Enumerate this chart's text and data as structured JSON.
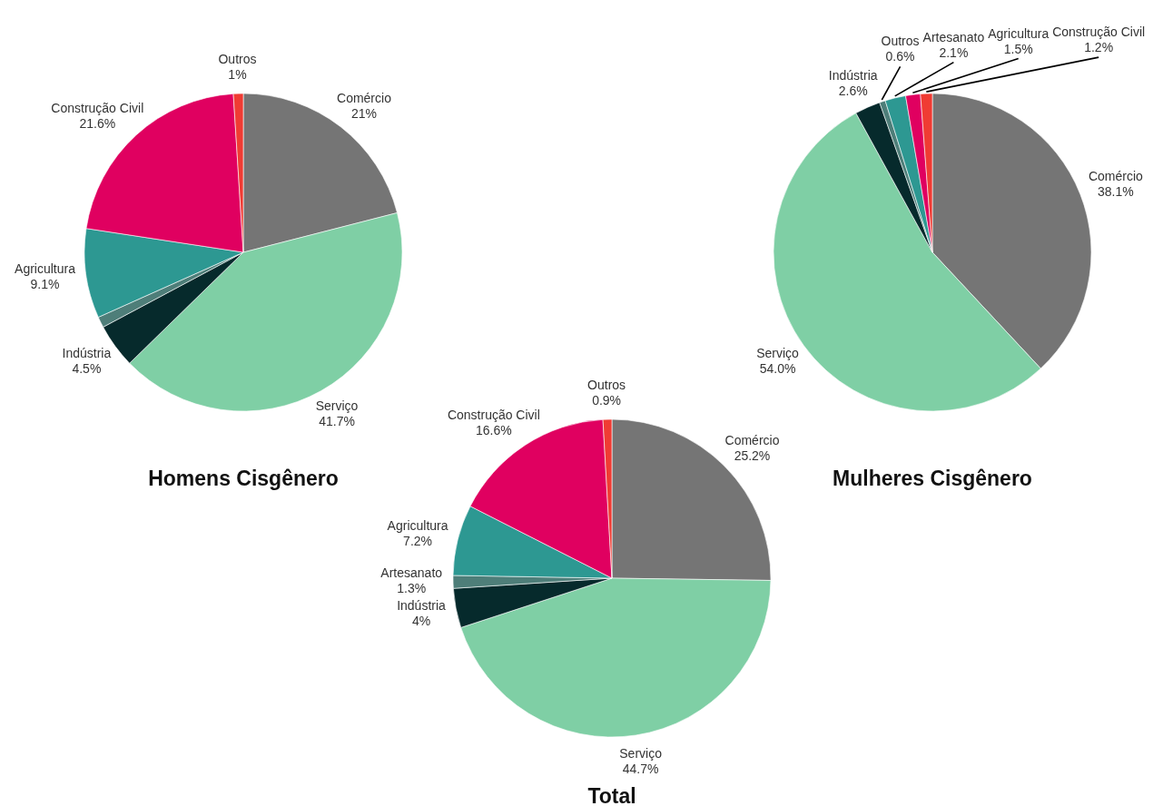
{
  "chart_data": [
    {
      "type": "pie",
      "title": "Homens Cisgênero",
      "categories": [
        "Comércio",
        "Serviço",
        "Indústria",
        null,
        "Agricultura",
        "Construção Civil",
        "Outros"
      ],
      "values": [
        21,
        41.7,
        4.5,
        1.1,
        9.1,
        21.6,
        1
      ],
      "value_labels": [
        "21%",
        "41.7%",
        "4.5%",
        null,
        "9.1%",
        "21.6%",
        "1%"
      ],
      "colors": [
        "#757575",
        "#7fcfa5",
        "#062a2c",
        "#4e7e79",
        "#2d9892",
        "#e00060",
        "#f03b33"
      ]
    },
    {
      "type": "pie",
      "title": "Mulheres Cisgênero",
      "categories": [
        "Comércio",
        "Serviço",
        "Indústria",
        "Outros",
        "Artesanato",
        "Agricultura",
        "Construção Civil"
      ],
      "values": [
        38.1,
        54.0,
        2.6,
        0.6,
        2.1,
        1.5,
        1.2
      ],
      "value_labels": [
        "38.1%",
        "54.0%",
        "2.6%",
        "0.6%",
        "2.1%",
        "1.5%",
        "1.2%"
      ],
      "colors": [
        "#757575",
        "#7fcfa5",
        "#062a2c",
        "#4e7e79",
        "#2d9892",
        "#e00060",
        "#f03b33"
      ]
    },
    {
      "type": "pie",
      "title": "Total",
      "categories": [
        "Comércio",
        "Serviço",
        "Indústria",
        "Artesanato",
        "Agricultura",
        "Construção Civil",
        "Outros"
      ],
      "values": [
        25.2,
        44.7,
        4,
        1.3,
        7.2,
        16.6,
        0.9
      ],
      "value_labels": [
        "25.2%",
        "44.7%",
        "4%",
        "1.3%",
        "7.2%",
        "16.6%",
        "0.9%"
      ],
      "colors": [
        "#757575",
        "#7fcfa5",
        "#062a2c",
        "#4e7e79",
        "#2d9892",
        "#e00060",
        "#f03b33"
      ]
    }
  ]
}
